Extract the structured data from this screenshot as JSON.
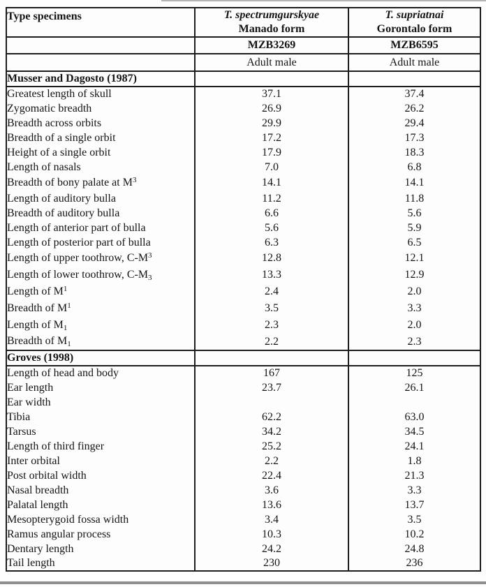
{
  "document": {
    "colors": {
      "border": "#1d1d1d",
      "text": "#141414",
      "faint_rule": "#b4b4b4",
      "bottom_rule": "#8e8e8e",
      "background": "#fdfdfd"
    },
    "header": {
      "label_column_title": "Type specimens",
      "columns": [
        {
          "species": "T. spectrumgurskyae",
          "form": "Manado form",
          "specimen_id": "MZB3269",
          "age_sex": "Adult male"
        },
        {
          "species": "T. supriatnai",
          "form": "Gorontalo form",
          "specimen_id": "MZB6595",
          "age_sex": "Adult male"
        }
      ]
    },
    "sections": [
      {
        "title": "Musser and Dagosto (1987)",
        "rows": [
          {
            "label": [
              {
                "t": "Greatest length of skull"
              }
            ],
            "values": [
              "37.1",
              "37.4"
            ]
          },
          {
            "label": [
              {
                "t": "Zygomatic breadth"
              }
            ],
            "values": [
              "26.9",
              "26.2"
            ]
          },
          {
            "label": [
              {
                "t": "Breadth across orbits"
              }
            ],
            "values": [
              "29.9",
              "29.4"
            ]
          },
          {
            "label": [
              {
                "t": "Breadth of a single orbit"
              }
            ],
            "values": [
              "17.2",
              "17.3"
            ]
          },
          {
            "label": [
              {
                "t": "Height of a single orbit"
              }
            ],
            "values": [
              "17.9",
              "18.3"
            ]
          },
          {
            "label": [
              {
                "t": "Length of nasals"
              }
            ],
            "values": [
              "7.0",
              "6.8"
            ]
          },
          {
            "label": [
              {
                "t": "Breadth of bony palate at M"
              },
              {
                "t": "3",
                "v": "sup"
              }
            ],
            "values": [
              "14.1",
              "14.1"
            ]
          },
          {
            "label": [
              {
                "t": "Length of auditory bulla"
              }
            ],
            "values": [
              "11.2",
              "11.8"
            ]
          },
          {
            "label": [
              {
                "t": "Breadth of auditory bulla"
              }
            ],
            "values": [
              "6.6",
              "5.6"
            ]
          },
          {
            "label": [
              {
                "t": "Length of anterior part of bulla"
              }
            ],
            "values": [
              "5.6",
              "5.9"
            ]
          },
          {
            "label": [
              {
                "t": "Length of posterior part of bulla"
              }
            ],
            "values": [
              "6.3",
              "6.5"
            ]
          },
          {
            "label": [
              {
                "t": "Length of upper toothrow, C-M"
              },
              {
                "t": "3",
                "v": "sup"
              }
            ],
            "values": [
              "12.8",
              "12.1"
            ]
          },
          {
            "label": [
              {
                "t": "Length of lower toothrow, C-M"
              },
              {
                "t": "3",
                "v": "sub"
              }
            ],
            "values": [
              "13.3",
              "12.9"
            ]
          },
          {
            "label": [
              {
                "t": "Length of M"
              },
              {
                "t": "1",
                "v": "sup"
              }
            ],
            "values": [
              "2.4",
              "2.0"
            ]
          },
          {
            "label": [
              {
                "t": "Breadth of M"
              },
              {
                "t": "1",
                "v": "sup"
              }
            ],
            "values": [
              "3.5",
              "3.3"
            ]
          },
          {
            "label": [
              {
                "t": "Length of M"
              },
              {
                "t": "1",
                "v": "sub"
              }
            ],
            "values": [
              "2.3",
              "2.0"
            ]
          },
          {
            "label": [
              {
                "t": "Breadth of M"
              },
              {
                "t": "1",
                "v": "sub"
              }
            ],
            "values": [
              "2.2",
              "2.3"
            ]
          }
        ]
      },
      {
        "title": "Groves (1998)",
        "rows": [
          {
            "label": [
              {
                "t": "Length of head and body"
              }
            ],
            "values": [
              "167",
              "125"
            ]
          },
          {
            "label": [
              {
                "t": "Ear length"
              }
            ],
            "values": [
              "23.7",
              "26.1"
            ]
          },
          {
            "label": [
              {
                "t": "Ear width"
              }
            ],
            "values": [
              "",
              ""
            ]
          },
          {
            "label": [
              {
                "t": "Tibia"
              }
            ],
            "values": [
              "62.2",
              "63.0"
            ]
          },
          {
            "label": [
              {
                "t": "Tarsus"
              }
            ],
            "values": [
              "34.2",
              "34.5"
            ]
          },
          {
            "label": [
              {
                "t": "Length of third finger"
              }
            ],
            "values": [
              "25.2",
              "24.1"
            ]
          },
          {
            "label": [
              {
                "t": "Inter orbital"
              }
            ],
            "values": [
              "2.2",
              "1.8"
            ]
          },
          {
            "label": [
              {
                "t": "Post orbital width"
              }
            ],
            "values": [
              "22.4",
              "21.3"
            ]
          },
          {
            "label": [
              {
                "t": "Nasal breadth"
              }
            ],
            "values": [
              "3.6",
              "3.3"
            ]
          },
          {
            "label": [
              {
                "t": "Palatal length"
              }
            ],
            "values": [
              "13.6",
              "13.7"
            ]
          },
          {
            "label": [
              {
                "t": "Mesopterygoid fossa width"
              }
            ],
            "values": [
              "3.4",
              "3.5"
            ]
          },
          {
            "label": [
              {
                "t": "Ramus angular process"
              }
            ],
            "values": [
              "10.3",
              "10.2"
            ]
          },
          {
            "label": [
              {
                "t": "Dentary length"
              }
            ],
            "values": [
              "24.2",
              "24.8"
            ]
          },
          {
            "label": [
              {
                "t": "Tail length"
              }
            ],
            "values": [
              "230",
              "236"
            ]
          }
        ]
      }
    ]
  }
}
